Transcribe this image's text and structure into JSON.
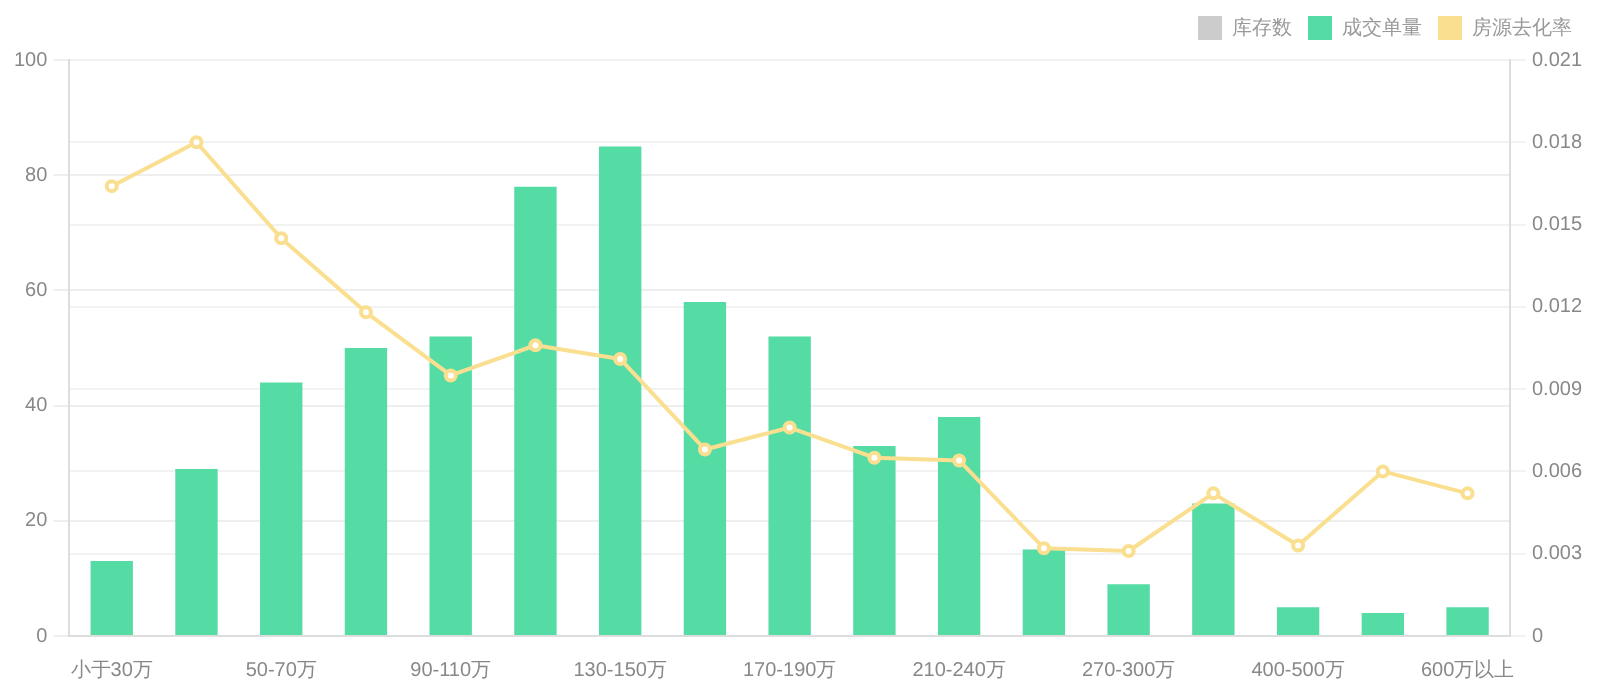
{
  "chart_data": {
    "type": "bar",
    "categories": [
      "小于30万",
      null,
      "50-70万",
      null,
      "90-110万",
      null,
      "130-150万",
      null,
      "170-190万",
      null,
      "210-240万",
      null,
      "270-300万",
      null,
      "400-500万",
      null,
      "600万以上"
    ],
    "series": [
      {
        "name": "库存数",
        "color": "#cccccc",
        "values": [
          null,
          null,
          null,
          null,
          null,
          null,
          null,
          null,
          null,
          null,
          null,
          null,
          null,
          null,
          null,
          null,
          null
        ]
      },
      {
        "name": "成交单量",
        "color": "#55dba4",
        "values": [
          13,
          29,
          44,
          50,
          52,
          78,
          85,
          58,
          52,
          33,
          38,
          15,
          9,
          23,
          5,
          4,
          5
        ]
      },
      {
        "name": "房源去化率",
        "type": "line",
        "axis": "y2",
        "color": "#f9df8f",
        "values": [
          0.0164,
          0.018,
          0.0145,
          0.0118,
          0.0095,
          0.0106,
          0.0101,
          0.0068,
          0.0076,
          0.0065,
          0.0064,
          0.0032,
          0.0031,
          0.0052,
          0.0033,
          0.006,
          0.0052
        ]
      }
    ],
    "ylim": [
      0,
      100
    ],
    "yticks": [
      0,
      20,
      40,
      60,
      80,
      100
    ],
    "y2lim": [
      0,
      0.021
    ],
    "y2ticks": [
      0,
      0.003,
      0.006,
      0.009,
      0.012,
      0.015,
      0.018,
      0.021
    ],
    "grid": "y",
    "legend": "top right",
    "marker": "circle",
    "line_style": "solid"
  }
}
